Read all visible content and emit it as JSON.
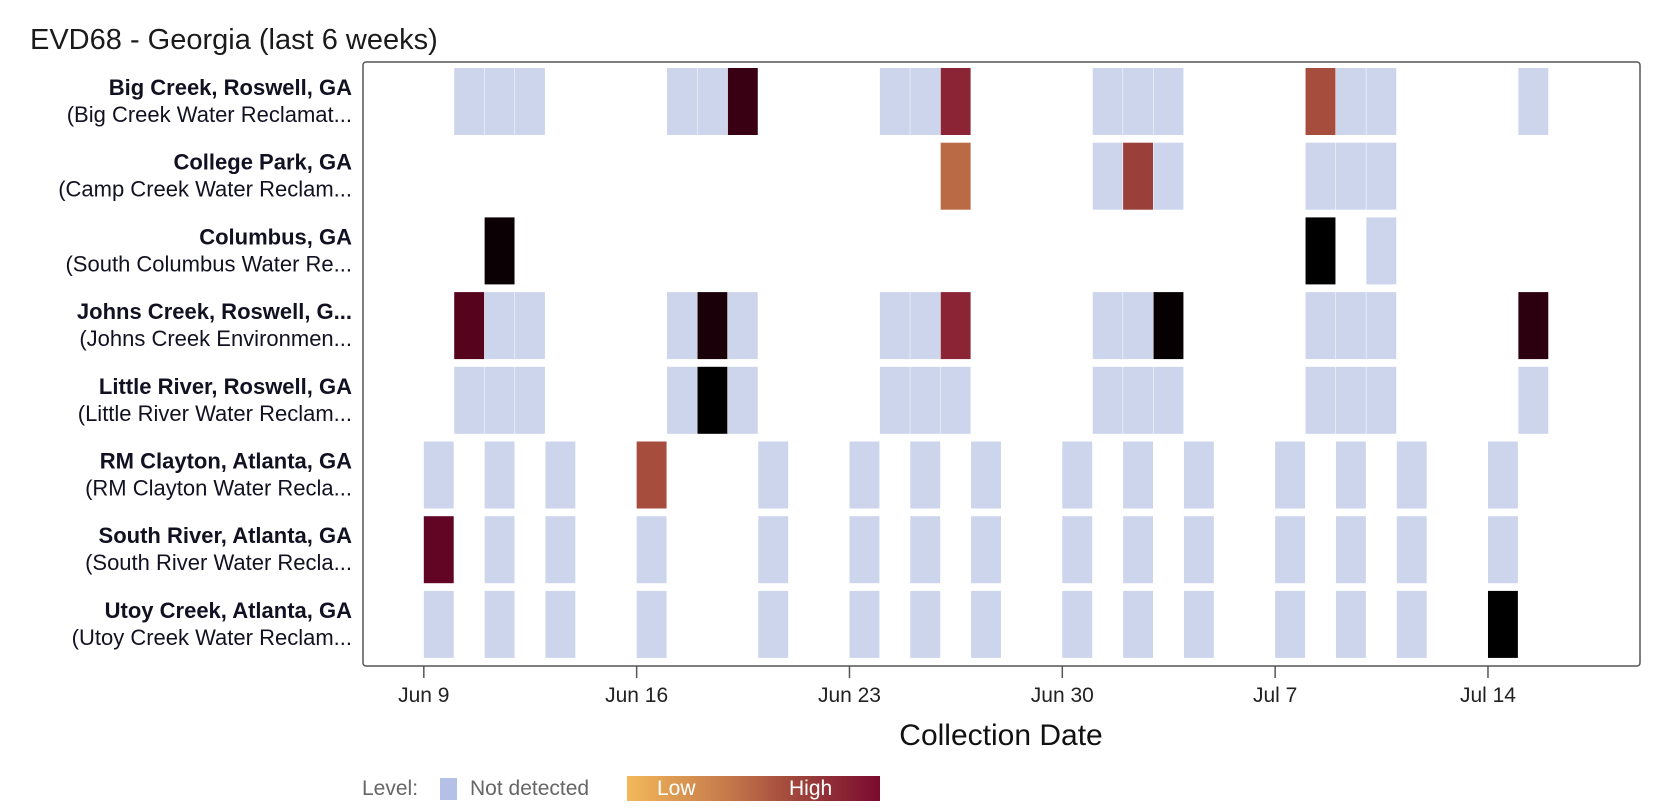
{
  "chart_data": {
    "type": "heatmap",
    "title": "EVD68 - Georgia (last 6 weeks)",
    "xlabel": "Collection Date",
    "x_ticks": [
      {
        "label": "Jun 9",
        "day": 0
      },
      {
        "label": "Jun 16",
        "day": 7
      },
      {
        "label": "Jun 23",
        "day": 14
      },
      {
        "label": "Jun 30",
        "day": 21
      },
      {
        "label": "Jul 7",
        "day": 28
      },
      {
        "label": "Jul 14",
        "day": 35
      }
    ],
    "x_range_days": [
      -2,
      40
    ],
    "day_zero_date": "Jun 9",
    "level_scale": "0 = Not detected; 0.05 (Low) to 1.0 (High)",
    "sites": [
      {
        "name": "Big Creek, Roswell, GA",
        "plant": "(Big Creek Water Reclamat...",
        "samples": [
          [
            1,
            0
          ],
          [
            2,
            0
          ],
          [
            3,
            0
          ],
          [
            8,
            0
          ],
          [
            9,
            0
          ],
          [
            10,
            0.85
          ],
          [
            15,
            0
          ],
          [
            16,
            0
          ],
          [
            17,
            0.5
          ],
          [
            22,
            0
          ],
          [
            23,
            0
          ],
          [
            24,
            0
          ],
          [
            29,
            0.35
          ],
          [
            30,
            0
          ],
          [
            31,
            0
          ],
          [
            36,
            0
          ]
        ]
      },
      {
        "name": "College Park, GA",
        "plant": "(Camp Creek Water Reclam...",
        "samples": [
          [
            17,
            0.25
          ],
          [
            22,
            0
          ],
          [
            23,
            0.4
          ],
          [
            24,
            0
          ],
          [
            29,
            0
          ],
          [
            30,
            0
          ],
          [
            31,
            0
          ]
        ]
      },
      {
        "name": "Columbus, GA",
        "plant": "(South Columbus Water Re...",
        "samples": [
          [
            2,
            0.97
          ],
          [
            29,
            1.0
          ],
          [
            31,
            0
          ]
        ]
      },
      {
        "name": "Johns Creek, Roswell, G...",
        "plant": "(Johns Creek Environmen...",
        "samples": [
          [
            1,
            0.75
          ],
          [
            2,
            0
          ],
          [
            3,
            0
          ],
          [
            8,
            0
          ],
          [
            9,
            0.93
          ],
          [
            10,
            0
          ],
          [
            15,
            0
          ],
          [
            16,
            0
          ],
          [
            17,
            0.5
          ],
          [
            22,
            0
          ],
          [
            23,
            0
          ],
          [
            24,
            0.98
          ],
          [
            29,
            0
          ],
          [
            30,
            0
          ],
          [
            31,
            0
          ],
          [
            36,
            0.88
          ]
        ]
      },
      {
        "name": "Little River, Roswell, GA",
        "plant": "(Little River Water Reclam...",
        "samples": [
          [
            1,
            0
          ],
          [
            2,
            0
          ],
          [
            3,
            0
          ],
          [
            8,
            0
          ],
          [
            9,
            1.0
          ],
          [
            10,
            0
          ],
          [
            15,
            0
          ],
          [
            16,
            0
          ],
          [
            17,
            0
          ],
          [
            22,
            0
          ],
          [
            23,
            0
          ],
          [
            24,
            0
          ],
          [
            29,
            0
          ],
          [
            30,
            0
          ],
          [
            31,
            0
          ],
          [
            36,
            0
          ]
        ]
      },
      {
        "name": "RM Clayton, Atlanta, GA",
        "plant": "(RM Clayton Water Recla...",
        "samples": [
          [
            0,
            0
          ],
          [
            2,
            0
          ],
          [
            4,
            0
          ],
          [
            7,
            0.35
          ],
          [
            11,
            0
          ],
          [
            14,
            0
          ],
          [
            16,
            0
          ],
          [
            18,
            0
          ],
          [
            21,
            0
          ],
          [
            23,
            0
          ],
          [
            25,
            0
          ],
          [
            28,
            0
          ],
          [
            30,
            0
          ],
          [
            32,
            0
          ],
          [
            35,
            0
          ]
        ]
      },
      {
        "name": "South River, Atlanta, GA",
        "plant": "(South River Water Recla...",
        "samples": [
          [
            0,
            0.7
          ],
          [
            2,
            0
          ],
          [
            4,
            0
          ],
          [
            7,
            0
          ],
          [
            11,
            0
          ],
          [
            14,
            0
          ],
          [
            16,
            0
          ],
          [
            18,
            0
          ],
          [
            21,
            0
          ],
          [
            23,
            0
          ],
          [
            25,
            0
          ],
          [
            28,
            0
          ],
          [
            30,
            0
          ],
          [
            32,
            0
          ],
          [
            35,
            0
          ]
        ]
      },
      {
        "name": "Utoy Creek, Atlanta, GA",
        "plant": "(Utoy Creek Water Reclam...",
        "samples": [
          [
            0,
            0
          ],
          [
            2,
            0
          ],
          [
            4,
            0
          ],
          [
            7,
            0
          ],
          [
            11,
            0
          ],
          [
            14,
            0
          ],
          [
            16,
            0
          ],
          [
            18,
            0
          ],
          [
            21,
            0
          ],
          [
            23,
            0
          ],
          [
            25,
            0
          ],
          [
            28,
            0
          ],
          [
            30,
            0
          ],
          [
            32,
            0
          ],
          [
            35,
            1.0
          ]
        ]
      }
    ],
    "legend": {
      "level_label": "Level:",
      "not_detected_label": "Not detected",
      "low_label": "Low",
      "high_label": "High"
    }
  },
  "colors": {
    "not_detected": "#cdd5ec",
    "legend_not_detected": "#b4c0e6",
    "gradient": [
      "#f2b95a",
      "#c5784a",
      "#9b3f3a",
      "#7a0a30",
      "#4a0018",
      "#000000"
    ],
    "frame": "#555555"
  }
}
